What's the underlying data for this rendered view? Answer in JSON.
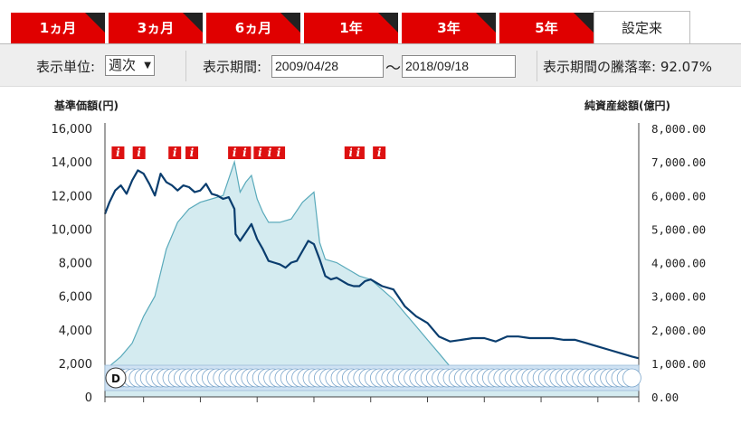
{
  "tabs": [
    {
      "label": "1ヵ月",
      "active": false
    },
    {
      "label": "3ヵ月",
      "active": false
    },
    {
      "label": "6ヵ月",
      "active": false
    },
    {
      "label": "1年",
      "active": false
    },
    {
      "label": "3年",
      "active": false
    },
    {
      "label": "5年",
      "active": false
    },
    {
      "label": "設定来",
      "active": true
    }
  ],
  "controls": {
    "unit_label": "表示単位:",
    "unit_value": "週次",
    "period_label": "表示期間:",
    "start_date": "2009/04/28",
    "tilde": "〜",
    "end_date": "2018/09/18",
    "change_label": "表示期間の騰落率: 92.07%"
  },
  "colors": {
    "tab_red": "#e00000",
    "price_line": "#0a3d6e",
    "assets_fill": "#d4ebf0",
    "assets_line": "#5aaabb",
    "marker_red": "#dd1111",
    "dividend_strip": "#cfe2f3"
  },
  "chart_data": {
    "type": "line+area",
    "left_axis_label": "基準価額(円)",
    "right_axis_label": "純資産総額(億円)",
    "left_ticks": [
      "16,000",
      "14,000",
      "12,000",
      "10,000",
      "8,000",
      "6,000",
      "4,000",
      "2,000",
      "0"
    ],
    "right_ticks": [
      "8,000.00",
      "7,000.00",
      "6,000.00",
      "5,000.00",
      "4,000.00",
      "3,000.00",
      "2,000.00",
      "1,000.00",
      "0.00"
    ],
    "ylim_left": [
      0,
      16000
    ],
    "ylim_right": [
      0,
      8000
    ],
    "x_range": [
      "2009/04/28",
      "2018/09/18"
    ],
    "series": [
      {
        "name": "基準価額",
        "axis": "left",
        "x": [
          2009.32,
          2009.4,
          2009.5,
          2009.6,
          2009.7,
          2009.8,
          2009.9,
          2010.0,
          2010.1,
          2010.2,
          2010.3,
          2010.4,
          2010.5,
          2010.6,
          2010.7,
          2010.8,
          2010.9,
          2011.0,
          2011.1,
          2011.2,
          2011.3,
          2011.4,
          2011.5,
          2011.6,
          2011.62,
          2011.7,
          2011.8,
          2011.9,
          2012.0,
          2012.1,
          2012.2,
          2012.3,
          2012.4,
          2012.5,
          2012.6,
          2012.7,
          2012.8,
          2012.9,
          2013.0,
          2013.1,
          2013.2,
          2013.3,
          2013.4,
          2013.5,
          2013.6,
          2013.7,
          2013.8,
          2013.9,
          2014.0,
          2014.2,
          2014.4,
          2014.6,
          2014.8,
          2015.0,
          2015.2,
          2015.4,
          2015.6,
          2015.8,
          2016.0,
          2016.2,
          2016.4,
          2016.6,
          2016.8,
          2017.0,
          2017.2,
          2017.4,
          2017.6,
          2017.8,
          2018.0,
          2018.2,
          2018.4,
          2018.6,
          2018.72
        ],
        "values": [
          10900,
          11600,
          12300,
          12600,
          12100,
          12900,
          13500,
          13300,
          12700,
          12000,
          13300,
          12800,
          12600,
          12300,
          12600,
          12500,
          12200,
          12300,
          12700,
          12100,
          12000,
          11800,
          11900,
          11200,
          9700,
          9300,
          9800,
          10300,
          9400,
          8800,
          8100,
          8000,
          7900,
          7700,
          8000,
          8100,
          8700,
          9300,
          9100,
          8200,
          7200,
          7000,
          7100,
          6900,
          6700,
          6600,
          6600,
          6900,
          7000,
          6600,
          6400,
          5400,
          4800,
          4400,
          3600,
          3300,
          3400,
          3500,
          3500,
          3300,
          3600,
          3600,
          3500,
          3500,
          3500,
          3400,
          3400,
          3200,
          3000,
          2800,
          2600,
          2400,
          2300
        ]
      },
      {
        "name": "純資産総額",
        "axis": "right",
        "x": [
          2009.32,
          2009.6,
          2009.8,
          2010.0,
          2010.2,
          2010.4,
          2010.6,
          2010.8,
          2011.0,
          2011.2,
          2011.4,
          2011.6,
          2011.7,
          2011.8,
          2011.9,
          2012.0,
          2012.1,
          2012.2,
          2012.4,
          2012.6,
          2012.8,
          2013.0,
          2013.1,
          2013.2,
          2013.4,
          2013.6,
          2013.8,
          2014.0,
          2014.2,
          2014.4,
          2014.6,
          2014.8,
          2015.0,
          2015.2,
          2015.4,
          2015.6,
          2016.0,
          2016.5,
          2017.0,
          2017.5,
          2018.0,
          2018.72
        ],
        "values": [
          800,
          1200,
          1600,
          2400,
          3000,
          4400,
          5200,
          5600,
          5800,
          5900,
          6000,
          7000,
          6100,
          6400,
          6600,
          5900,
          5500,
          5200,
          5200,
          5300,
          5800,
          6100,
          4600,
          4100,
          4000,
          3800,
          3600,
          3500,
          3200,
          2900,
          2500,
          2100,
          1700,
          1300,
          900,
          700,
          600,
          600,
          600,
          600,
          600,
          600
        ]
      }
    ],
    "info_markers": [
      {
        "x": 2009.55,
        "label": "i"
      },
      {
        "x": 2009.92,
        "label": "i"
      },
      {
        "x": 2010.55,
        "label": "i"
      },
      {
        "x": 2010.85,
        "label": "i"
      },
      {
        "x": 2011.6,
        "label": "i"
      },
      {
        "x": 2011.78,
        "label": "i"
      },
      {
        "x": 2012.05,
        "label": "i"
      },
      {
        "x": 2012.22,
        "label": "i"
      },
      {
        "x": 2012.38,
        "label": "i"
      },
      {
        "x": 2013.65,
        "label": "i"
      },
      {
        "x": 2013.78,
        "label": "i"
      },
      {
        "x": 2014.15,
        "label": "i"
      }
    ],
    "dividend_marker_label": "D",
    "grid": false
  }
}
